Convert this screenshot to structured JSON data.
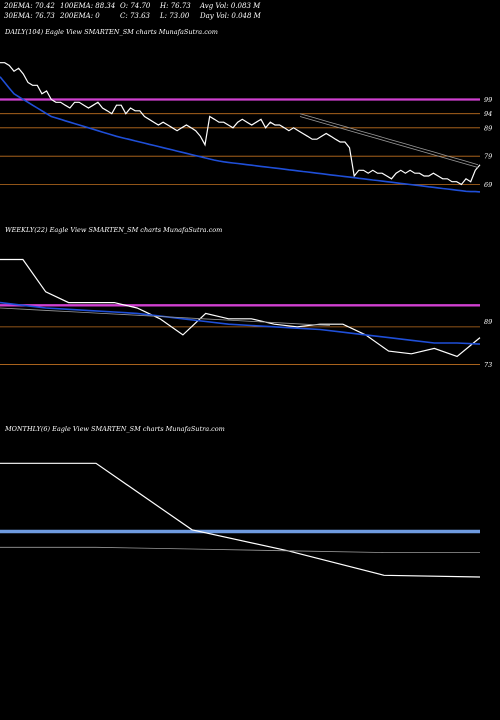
{
  "header": {
    "row1": [
      "20EMA: 70.42",
      "100EMA: 88.34",
      "O: 74.70",
      "H: 76.73",
      "Avg Vol: 0.083  M"
    ],
    "row2": [
      "30EMA: 76.73",
      "200EMA: 0",
      "C: 73.63",
      "L: 73.00",
      "Day Vol: 0.048  M"
    ]
  },
  "panels": {
    "daily": {
      "title": "DAILY(104) Eagle   View  SMARTEN_SM charts MunafaSutra.com"
    },
    "weekly": {
      "title": "WEEKLY(22) Eagle   View  SMARTEN_SM charts MunafaSutra.com"
    },
    "monthly": {
      "title": "MONTHLY(6) Eagle   View  SMARTEN_SM charts MunafaSutra.com"
    }
  },
  "colors": {
    "price": "#ffffff",
    "ema_blue": "#1f4fd8",
    "magenta": "#d040d0",
    "orange": "#c07020",
    "gray": "#9a9a9a",
    "steel_blue": "#6f9be0"
  },
  "chart_data": [
    {
      "type": "line",
      "title": "DAILY(104) Eagle   View  SMARTEN_SM charts MunafaSutra.com",
      "ylim": [
        60,
        120
      ],
      "price_axis_labels": [
        {
          "text": "99",
          "value": 99
        },
        {
          "text": "94",
          "value": 94
        },
        {
          "text": "89",
          "value": 89
        },
        {
          "text": "79",
          "value": 79
        },
        {
          "text": "69",
          "value": 69
        }
      ],
      "series": [
        {
          "key": "price",
          "values": [
            112,
            112,
            111,
            109,
            110,
            108,
            105,
            104,
            104,
            101,
            102,
            99,
            98,
            98,
            97,
            96,
            98,
            98,
            97,
            96,
            97,
            98,
            96,
            95,
            94,
            97,
            97,
            94,
            96,
            95,
            95,
            93,
            92,
            91,
            90,
            91,
            90,
            89,
            88,
            89,
            90,
            89,
            88,
            86,
            83,
            93,
            92,
            91,
            91,
            90,
            89,
            91,
            92,
            91,
            90,
            91,
            92,
            89,
            91,
            90,
            90,
            89,
            88,
            89,
            88,
            87,
            86,
            85,
            85,
            86,
            87,
            86,
            85,
            84,
            84,
            82,
            72,
            74,
            74,
            73,
            74,
            73,
            73,
            72,
            71,
            73,
            74,
            73,
            74,
            73,
            73,
            72,
            72,
            73,
            72,
            71,
            71,
            70,
            70,
            69,
            71,
            70,
            74,
            76
          ]
        },
        {
          "key": "ema_blue",
          "values": [
            107,
            105,
            103,
            101,
            100,
            99,
            98,
            97,
            96,
            95,
            94,
            93,
            92.5,
            92,
            91.5,
            91,
            90.5,
            90,
            89.5,
            89,
            88.5,
            88,
            87.5,
            87,
            86.5,
            86,
            85.6,
            85.2,
            84.8,
            84.4,
            84,
            83.6,
            83.2,
            82.8,
            82.4,
            82,
            81.6,
            81.2,
            80.8,
            80.4,
            80,
            79.6,
            79.2,
            78.8,
            78.4,
            78,
            77.6,
            77.3,
            77,
            76.8,
            76.6,
            76.4,
            76.2,
            76,
            75.8,
            75.6,
            75.4,
            75.2,
            75,
            74.8,
            74.6,
            74.4,
            74.2,
            74,
            73.8,
            73.6,
            73.4,
            73.2,
            73,
            72.8,
            72.6,
            72.4,
            72.2,
            72,
            71.8,
            71.6,
            71.4,
            71.2,
            71,
            70.8,
            70.6,
            70.4,
            70.2,
            70,
            69.8,
            69.6,
            69.4,
            69.2,
            69,
            68.8,
            68.6,
            68.4,
            68.2,
            68,
            67.8,
            67.6,
            67.4,
            67.2,
            67,
            66.8,
            66.6,
            66.5,
            66.5,
            66.4
          ]
        },
        {
          "key": "gray_ema_1",
          "values": [
            94,
            92.5,
            91,
            89.5,
            88,
            86.5,
            85,
            83.5,
            82,
            80.5,
            79,
            77.5,
            76
          ]
        },
        {
          "key": "gray_ema_2",
          "values": [
            93,
            91.5,
            90,
            88.5,
            87,
            85.5,
            84,
            82.5,
            81,
            79.5,
            78,
            76.5,
            75
          ]
        }
      ],
      "reference_lines": [
        {
          "value": 99,
          "color": "magenta"
        },
        {
          "value": 94,
          "color": "orange"
        },
        {
          "value": 89,
          "color": "orange"
        },
        {
          "value": 79,
          "color": "orange"
        },
        {
          "value": 69,
          "color": "orange"
        }
      ]
    },
    {
      "type": "line",
      "title": "WEEKLY(22) Eagle   View  SMARTEN_SM charts MunafaSutra.com",
      "ylim": [
        55,
        120
      ],
      "price_axis_labels": [
        {
          "text": "89",
          "value": 89
        },
        {
          "text": "73",
          "value": 73
        }
      ],
      "series": [
        {
          "key": "price",
          "values": [
            112,
            112,
            100,
            96,
            96,
            96,
            94,
            90,
            84,
            92,
            90,
            90,
            88,
            87,
            88,
            88,
            84,
            78,
            77,
            79,
            76,
            83
          ]
        },
        {
          "key": "ema_blue",
          "values": [
            96,
            95,
            94,
            93.5,
            93,
            92.5,
            92,
            91,
            90,
            89,
            88,
            87.5,
            87,
            86.5,
            86,
            85,
            84,
            83,
            82,
            81,
            81,
            80.6
          ]
        },
        {
          "key": "gray_ema",
          "values": [
            94,
            93.5,
            93,
            92.5,
            92,
            91.5,
            91,
            90.5,
            90,
            89.5,
            89,
            88.5,
            88,
            87.5
          ]
        }
      ],
      "reference_lines": [
        {
          "value": 95,
          "color": "magenta"
        },
        {
          "value": 87,
          "color": "orange"
        },
        {
          "value": 73,
          "color": "orange"
        }
      ]
    },
    {
      "type": "line",
      "title": "MONTHLY(6) Eagle   View  SMARTEN_SM charts MunafaSutra.com",
      "ylim": [
        50,
        150
      ],
      "series": [
        {
          "key": "price",
          "values": [
            135,
            135,
            97,
            85,
            71,
            70
          ]
        },
        {
          "key": "gray_ema",
          "values": [
            87,
            87,
            86,
            85,
            84,
            84
          ]
        }
      ],
      "reference_lines": [
        {
          "value": 96,
          "color": "steel_blue"
        }
      ]
    }
  ]
}
